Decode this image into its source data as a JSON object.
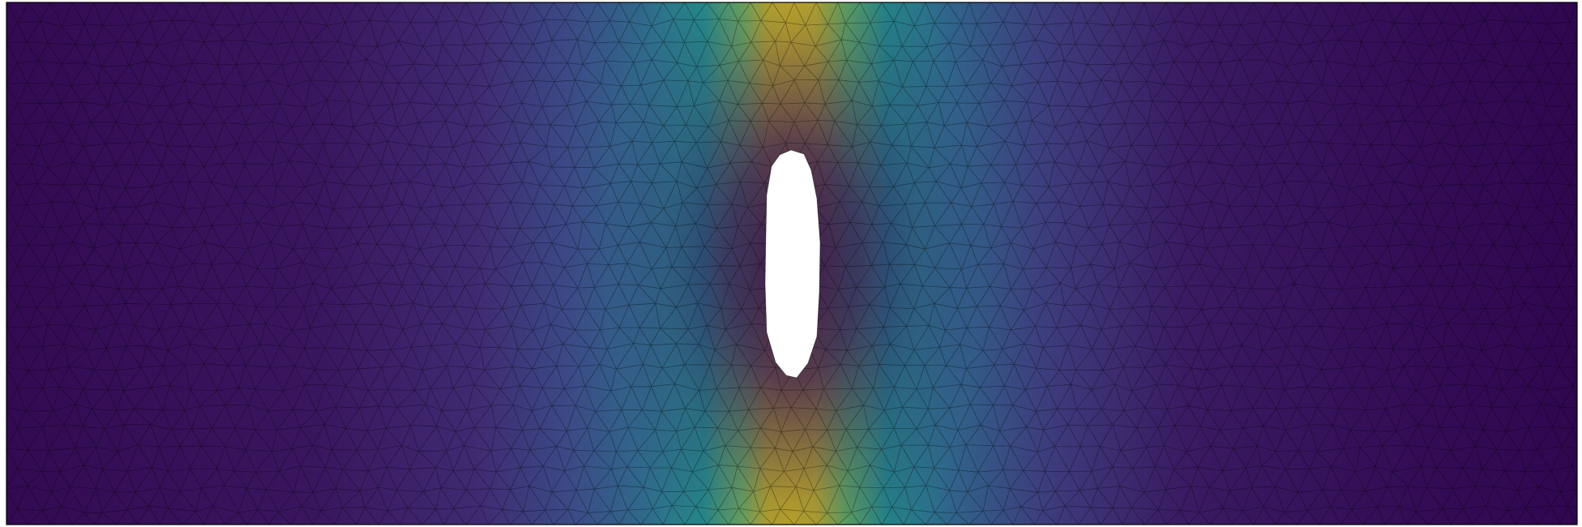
{
  "figure": {
    "kind": "finite-element triangular mesh",
    "colormap": "viridis",
    "field_low_color": "#440154",
    "field_high_color": "#d2bd1c",
    "mesh_line_color": "#000000",
    "background_color": "#ffffff",
    "hole_color": "#ffffff",
    "border_color": "#000000"
  }
}
